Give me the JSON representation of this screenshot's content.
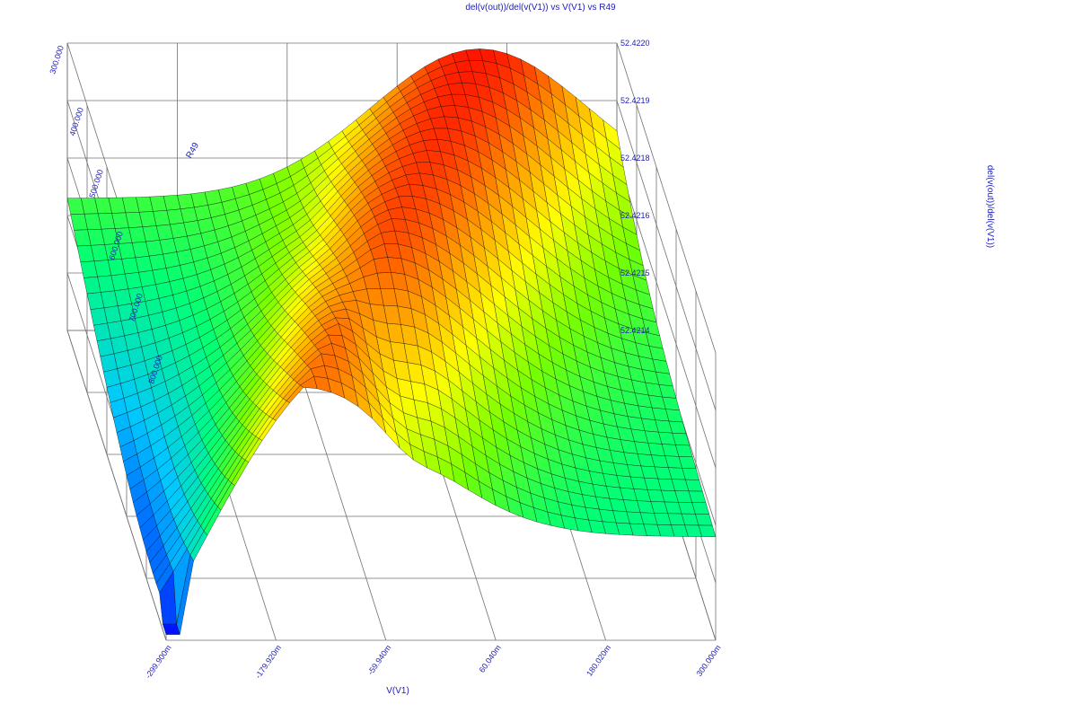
{
  "chart_data": {
    "type": "surface",
    "title": "del(v(out))/del(v(V1)) vs V(V1) vs R49",
    "xlabel": "V(V1)",
    "ylabel": "R49",
    "zlabel": "del(v(out))/del(v(V1))",
    "x_ticks": [
      "-299.900m",
      "-179.920m",
      "-59.940m",
      "60.040m",
      "180.020m",
      "300.000m"
    ],
    "y_ticks": [
      "300.000",
      "400.000",
      "500.000",
      "600.000",
      "700.000",
      "800.000"
    ],
    "z_ticks": [
      "52.4220",
      "52.4219",
      "52.4218",
      "52.4216",
      "52.4215",
      "52.4214"
    ],
    "x_range": [
      -0.2999,
      0.3
    ],
    "y_range": [
      300,
      800
    ],
    "z_range": [
      52.4214,
      52.422
    ],
    "grid": true,
    "colors": {
      "axis_text": "#1d1db8",
      "grid_line": "#707070",
      "mesh_line": "#000000",
      "low": "#0000ff",
      "high": "#ff0000"
    }
  }
}
